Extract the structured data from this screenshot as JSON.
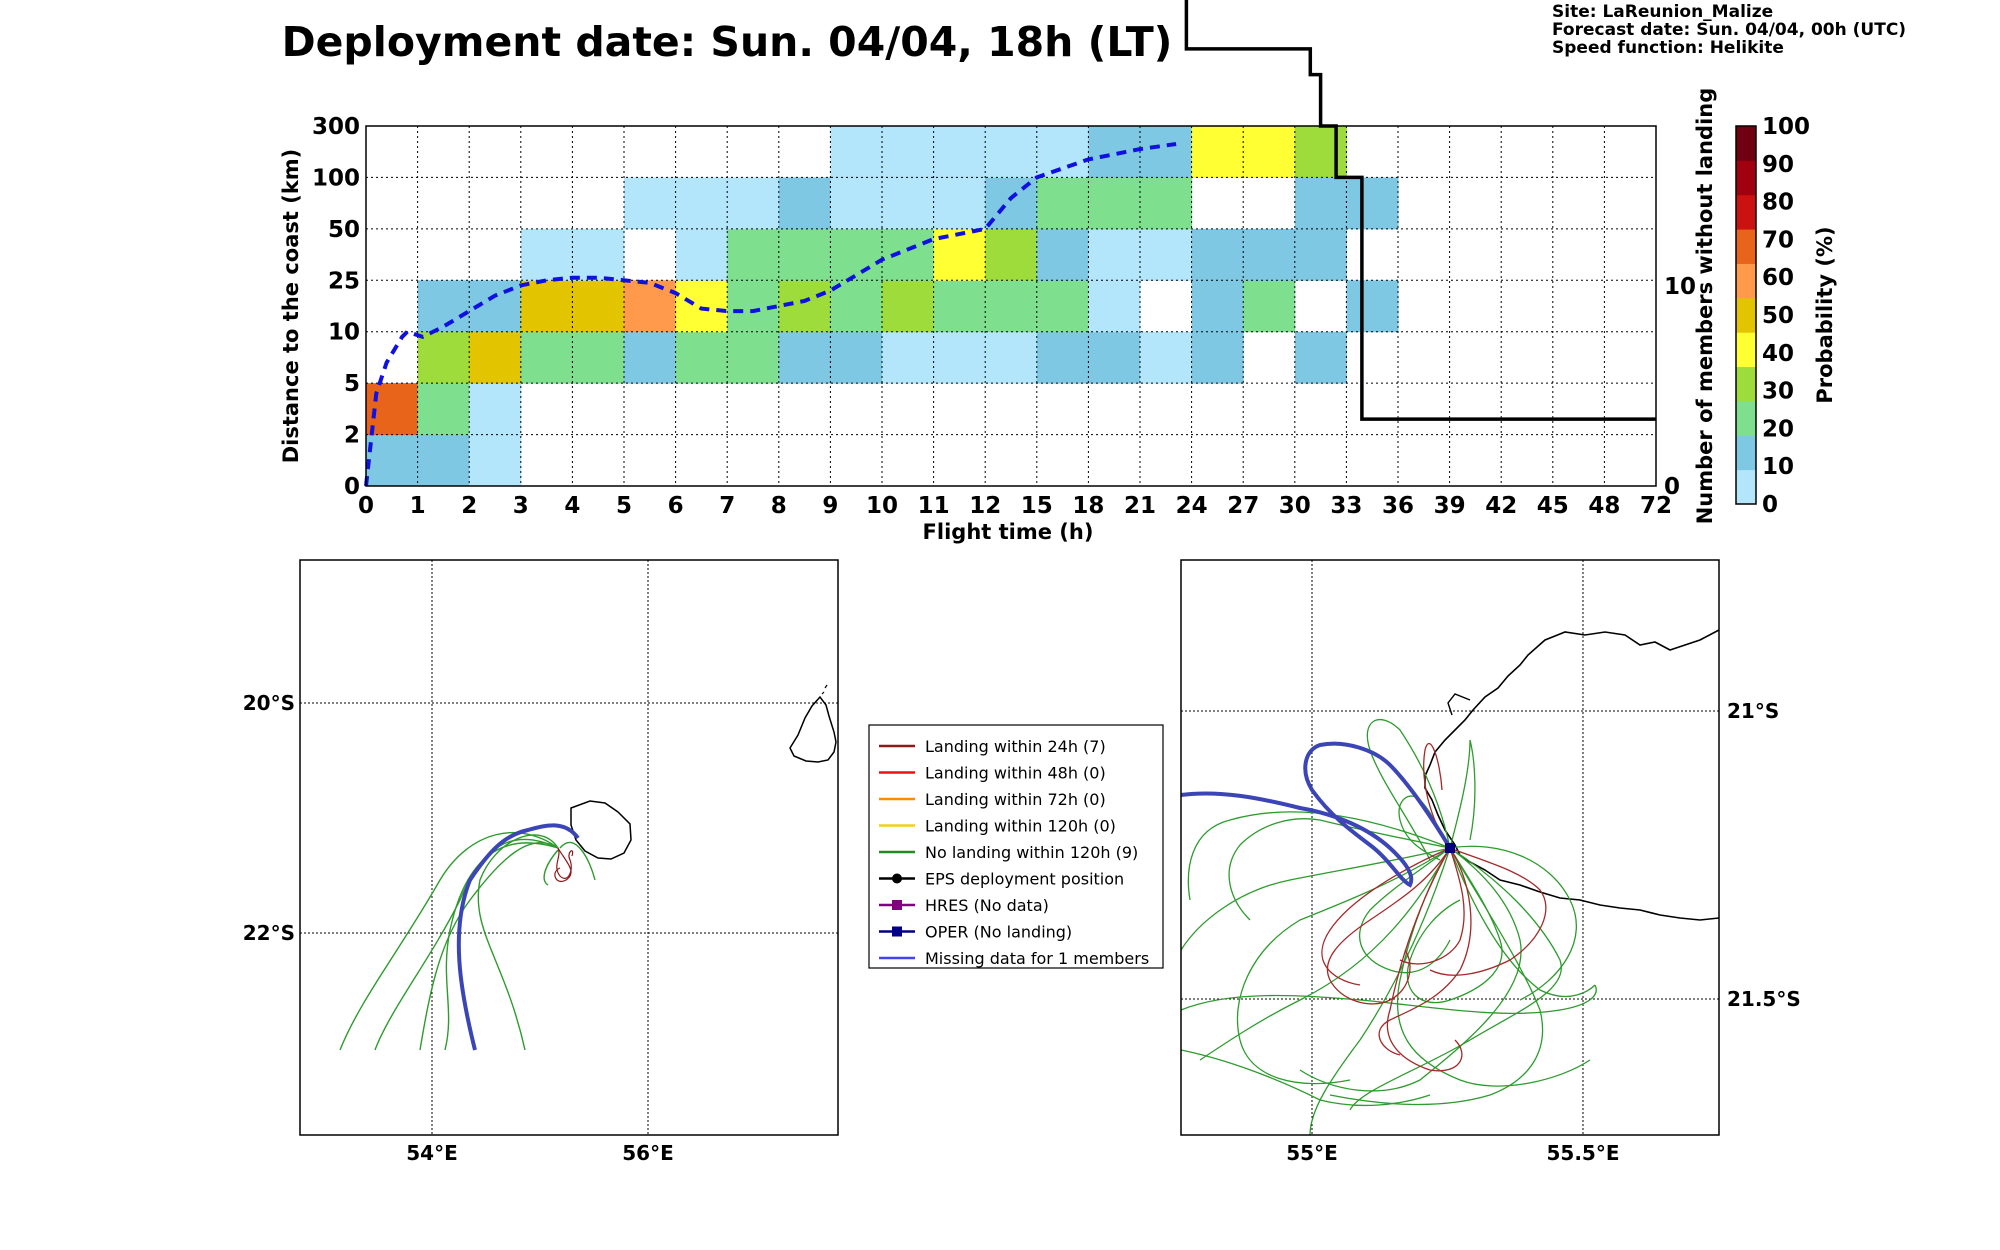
{
  "header": {
    "title": "Deployment date: Sun. 04/04, 18h (LT)",
    "info_lines": [
      "Site: LaReunion_Malize",
      "Forecast date: Sun. 04/04, 00h (UTC)",
      "Speed function: Helikite"
    ]
  },
  "chart_data": [
    {
      "type": "heatmap",
      "xlabel": "Flight time (h)",
      "ylabel": "Distance to the coast (km)",
      "y2label": "Number of members without landing",
      "x_ticks": [
        "0",
        "1",
        "2",
        "3",
        "4",
        "5",
        "6",
        "7",
        "8",
        "9",
        "10",
        "11",
        "12",
        "15",
        "18",
        "21",
        "24",
        "27",
        "30",
        "33",
        "36",
        "39",
        "42",
        "45",
        "48",
        "72"
      ],
      "y_ticks": [
        "0",
        "2",
        "5",
        "10",
        "25",
        "50",
        "100",
        "300"
      ],
      "y2_ticks": [
        "0",
        "10"
      ],
      "y2lim": [
        0,
        18
      ],
      "grid": true,
      "colorbar": {
        "label": "Probability (%)",
        "ticks": [
          "0",
          "10",
          "20",
          "30",
          "40",
          "50",
          "60",
          "70",
          "80",
          "90",
          "100"
        ],
        "colors": [
          "#b3e5fb",
          "#7ec8e3",
          "#7ee08f",
          "#9edc3c",
          "#ffff33",
          "#e2c400",
          "#ff9a4d",
          "#e8641a",
          "#cc1111",
          "#a00010",
          "#6e0012"
        ]
      },
      "cells": [
        {
          "x": 0,
          "y": 0,
          "p": 10
        },
        {
          "x": 1,
          "y": 0,
          "p": 10
        },
        {
          "x": 2,
          "y": 0,
          "p": 0
        },
        {
          "x": 0,
          "y": 1,
          "p": 70
        },
        {
          "x": 1,
          "y": 1,
          "p": 20
        },
        {
          "x": 2,
          "y": 1,
          "p": 0
        },
        {
          "x": 1,
          "y": 2,
          "p": 30
        },
        {
          "x": 2,
          "y": 2,
          "p": 50
        },
        {
          "x": 3,
          "y": 2,
          "p": 20
        },
        {
          "x": 4,
          "y": 2,
          "p": 20
        },
        {
          "x": 5,
          "y": 2,
          "p": 10
        },
        {
          "x": 6,
          "y": 2,
          "p": 20
        },
        {
          "x": 7,
          "y": 2,
          "p": 20
        },
        {
          "x": 8,
          "y": 2,
          "p": 10
        },
        {
          "x": 9,
          "y": 2,
          "p": 10
        },
        {
          "x": 10,
          "y": 2,
          "p": 0
        },
        {
          "x": 11,
          "y": 2,
          "p": 0
        },
        {
          "x": 12,
          "y": 2,
          "p": 0
        },
        {
          "x": 13,
          "y": 2,
          "p": 10
        },
        {
          "x": 14,
          "y": 2,
          "p": 10
        },
        {
          "x": 15,
          "y": 2,
          "p": 0
        },
        {
          "x": 16,
          "y": 2,
          "p": 10
        },
        {
          "x": 18,
          "y": 2,
          "p": 10
        },
        {
          "x": 1,
          "y": 3,
          "p": 10
        },
        {
          "x": 2,
          "y": 3,
          "p": 10
        },
        {
          "x": 3,
          "y": 3,
          "p": 50
        },
        {
          "x": 4,
          "y": 3,
          "p": 50
        },
        {
          "x": 5,
          "y": 3,
          "p": 60
        },
        {
          "x": 6,
          "y": 3,
          "p": 40
        },
        {
          "x": 7,
          "y": 3,
          "p": 20
        },
        {
          "x": 8,
          "y": 3,
          "p": 30
        },
        {
          "x": 9,
          "y": 3,
          "p": 20
        },
        {
          "x": 10,
          "y": 3,
          "p": 30
        },
        {
          "x": 11,
          "y": 3,
          "p": 20
        },
        {
          "x": 12,
          "y": 3,
          "p": 20
        },
        {
          "x": 13,
          "y": 3,
          "p": 20
        },
        {
          "x": 14,
          "y": 3,
          "p": 0
        },
        {
          "x": 16,
          "y": 3,
          "p": 10
        },
        {
          "x": 17,
          "y": 3,
          "p": 20
        },
        {
          "x": 19,
          "y": 3,
          "p": 10
        },
        {
          "x": 3,
          "y": 4,
          "p": 0
        },
        {
          "x": 4,
          "y": 4,
          "p": 0
        },
        {
          "x": 6,
          "y": 4,
          "p": 0
        },
        {
          "x": 7,
          "y": 4,
          "p": 20
        },
        {
          "x": 8,
          "y": 4,
          "p": 20
        },
        {
          "x": 9,
          "y": 4,
          "p": 20
        },
        {
          "x": 10,
          "y": 4,
          "p": 20
        },
        {
          "x": 11,
          "y": 4,
          "p": 40
        },
        {
          "x": 12,
          "y": 4,
          "p": 30
        },
        {
          "x": 13,
          "y": 4,
          "p": 10
        },
        {
          "x": 14,
          "y": 4,
          "p": 0
        },
        {
          "x": 15,
          "y": 4,
          "p": 0
        },
        {
          "x": 16,
          "y": 4,
          "p": 10
        },
        {
          "x": 17,
          "y": 4,
          "p": 10
        },
        {
          "x": 18,
          "y": 4,
          "p": 10
        },
        {
          "x": 5,
          "y": 5,
          "p": 0
        },
        {
          "x": 6,
          "y": 5,
          "p": 0
        },
        {
          "x": 7,
          "y": 5,
          "p": 0
        },
        {
          "x": 8,
          "y": 5,
          "p": 10
        },
        {
          "x": 9,
          "y": 5,
          "p": 0
        },
        {
          "x": 10,
          "y": 5,
          "p": 0
        },
        {
          "x": 11,
          "y": 5,
          "p": 0
        },
        {
          "x": 12,
          "y": 5,
          "p": 10
        },
        {
          "x": 13,
          "y": 5,
          "p": 20
        },
        {
          "x": 14,
          "y": 5,
          "p": 20
        },
        {
          "x": 15,
          "y": 5,
          "p": 20
        },
        {
          "x": 18,
          "y": 5,
          "p": 10
        },
        {
          "x": 19,
          "y": 5,
          "p": 10
        },
        {
          "x": 9,
          "y": 6,
          "p": 0
        },
        {
          "x": 10,
          "y": 6,
          "p": 0
        },
        {
          "x": 11,
          "y": 6,
          "p": 0
        },
        {
          "x": 12,
          "y": 6,
          "p": 0
        },
        {
          "x": 13,
          "y": 6,
          "p": 0
        },
        {
          "x": 14,
          "y": 6,
          "p": 10
        },
        {
          "x": 15,
          "y": 6,
          "p": 10
        },
        {
          "x": 16,
          "y": 6,
          "p": 40
        },
        {
          "x": 17,
          "y": 6,
          "p": 40
        },
        {
          "x": 18,
          "y": 6,
          "p": 30
        }
      ],
      "series": [
        {
          "style": "black-step",
          "x": [
            0,
            0.4,
            0.4,
            1.3,
            1.3,
            2.9,
            2.9,
            13.8,
            13.8,
            14.4,
            14.4,
            15.3,
            15.3,
            15.9,
            15.9,
            18.3,
            18.3,
            18.5,
            18.5,
            18.8,
            18.8,
            19.3,
            19.3,
            19.3,
            19.3,
            25
          ],
          "y": [
            18,
            18,
            16,
            16,
            15,
            15,
            12.5,
            12.5,
            11.5,
            11.5,
            10.5,
            10.5,
            9.5,
            9.5,
            8.5,
            8.5,
            8,
            8,
            7,
            7,
            6,
            6,
            5,
            1.3,
            1.3,
            1.3
          ]
        },
        {
          "style": "blue-dashed",
          "x": [
            0,
            0.2,
            0.4,
            0.7,
            0.8,
            1.1,
            1.5,
            2.0,
            2.5,
            3.0,
            3.5,
            4.0,
            4.5,
            5.0,
            5.5,
            6.0,
            6.5,
            7.0,
            7.5,
            8.0,
            8.5,
            9.0,
            10.0,
            11.0,
            12.0,
            12.5,
            13.0,
            14.0,
            15.0,
            15.7
          ],
          "y": [
            0,
            1.8,
            2.4,
            2.9,
            3.0,
            2.9,
            3.1,
            3.4,
            3.7,
            3.9,
            4.0,
            4.05,
            4.05,
            4.0,
            3.95,
            3.75,
            3.45,
            3.4,
            3.4,
            3.5,
            3.6,
            3.8,
            4.4,
            4.8,
            5.0,
            5.6,
            6.0,
            6.35,
            6.55,
            6.65
          ]
        }
      ]
    },
    {
      "type": "map",
      "name": "regional-map",
      "x_ticks": [
        "54°E",
        "56°E"
      ],
      "y_ticks": [
        "20°S",
        "22°S"
      ]
    },
    {
      "type": "map",
      "name": "zoom-map",
      "x_ticks": [
        "55°E",
        "55.5°E"
      ],
      "y_ticks": [
        "21°S",
        "21.5°S"
      ]
    }
  ],
  "legend": {
    "items": [
      {
        "label": "Landing within 24h (7)",
        "color": "#8b1a1a",
        "marker": "none"
      },
      {
        "label": "Landing within 48h (0)",
        "color": "#ee1111",
        "marker": "none"
      },
      {
        "label": "Landing within 72h (0)",
        "color": "#ff8c00",
        "marker": "none"
      },
      {
        "label": "Landing within 120h (0)",
        "color": "#f2d016",
        "marker": "none"
      },
      {
        "label": "No landing within 120h (9)",
        "color": "#228b22",
        "marker": "none"
      },
      {
        "label": "EPS deployment position",
        "color": "#000000",
        "marker": "circle"
      },
      {
        "label": "HRES (No data)",
        "color": "#800080",
        "marker": "square"
      },
      {
        "label": "OPER (No landing)",
        "color": "#000080",
        "marker": "square"
      },
      {
        "label": "Missing data for 1 members",
        "color": "#4444ee",
        "marker": "none"
      }
    ]
  }
}
